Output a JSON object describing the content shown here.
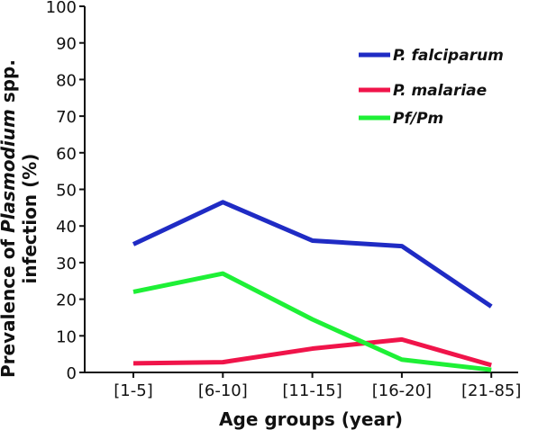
{
  "chart_data": {
    "type": "line",
    "categories": [
      "[1-5]",
      "[6-10]",
      "[11-15]",
      "[16-20]",
      "[21-85]"
    ],
    "series": [
      {
        "name": "P. falciparum",
        "values": [
          35,
          46.5,
          36,
          34.5,
          18
        ],
        "color": "#1f2bc4"
      },
      {
        "name": "P. malariae",
        "values": [
          2.5,
          2.8,
          6.5,
          9,
          2
        ],
        "color": "#f0144a"
      },
      {
        "name": "Pf/Pm",
        "values": [
          22,
          27,
          14.5,
          3.5,
          0.7
        ],
        "color": "#1ef036"
      }
    ],
    "ylim": [
      0,
      100
    ],
    "yticks": [
      0,
      10,
      20,
      30,
      40,
      50,
      60,
      70,
      80,
      90,
      100
    ],
    "xlabel": "Age groups (year)",
    "ylabel_line1": "Prevalence of Plasmodium spp.",
    "ylabel_line2": "infection (%)",
    "legend_position": "top-right",
    "grid": false
  }
}
